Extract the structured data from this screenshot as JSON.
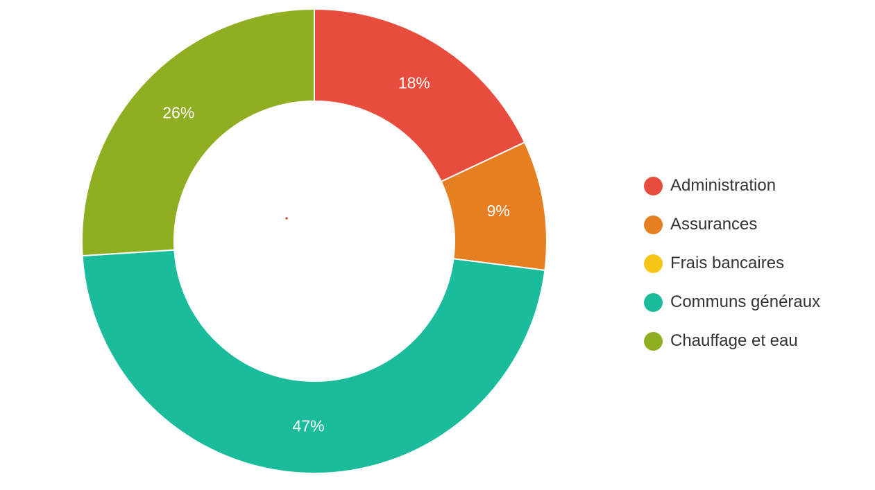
{
  "chart_data": {
    "type": "pie",
    "variant": "donut",
    "title": "",
    "categories": [
      "Administration",
      "Assurances",
      "Frais bancaires",
      "Communs généraux",
      "Chauffage et eau"
    ],
    "values": [
      18,
      9,
      0,
      47,
      26
    ],
    "unit": "%",
    "data_labels": [
      "18%",
      "9%",
      "",
      "47%",
      "26%"
    ],
    "colors": [
      "#e74c3c",
      "#e67e22",
      "#f5c518",
      "#1abc9c",
      "#8fae22"
    ],
    "start_angle": "12 o'clock",
    "direction": "clockwise",
    "legend": {
      "position": "right",
      "marker": "circle"
    }
  }
}
